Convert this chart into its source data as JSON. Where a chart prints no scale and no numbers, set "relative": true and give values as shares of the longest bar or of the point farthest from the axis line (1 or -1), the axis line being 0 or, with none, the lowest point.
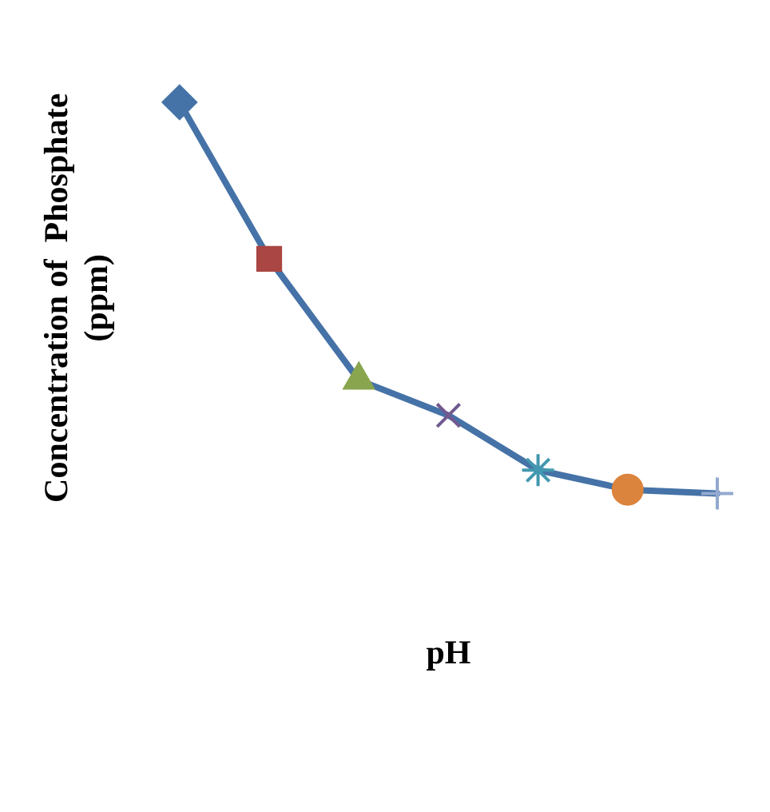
{
  "chart_data": {
    "type": "line",
    "relative": true,
    "xlabel": "pH",
    "ylabel": "Concentration of  Phosphate\n(ppm)",
    "categories": [
      null,
      null,
      null,
      null,
      null,
      null,
      null
    ],
    "series": [
      {
        "color": "#4572a7",
        "colors": [
          "#4572a7",
          "#aa4643",
          "#89a54e",
          "#71588f",
          "#4198af",
          "#db843d",
          "#93a9cf"
        ],
        "values": [
          1,
          0.6,
          0.29,
          0.2,
          0.06,
          0.01,
          0
        ]
      }
    ],
    "marker": [
      "diamond",
      "square",
      "triangle",
      "cross",
      "star",
      "circle",
      "plus"
    ],
    "grid": false,
    "legend": false,
    "tick_labels": false
  }
}
